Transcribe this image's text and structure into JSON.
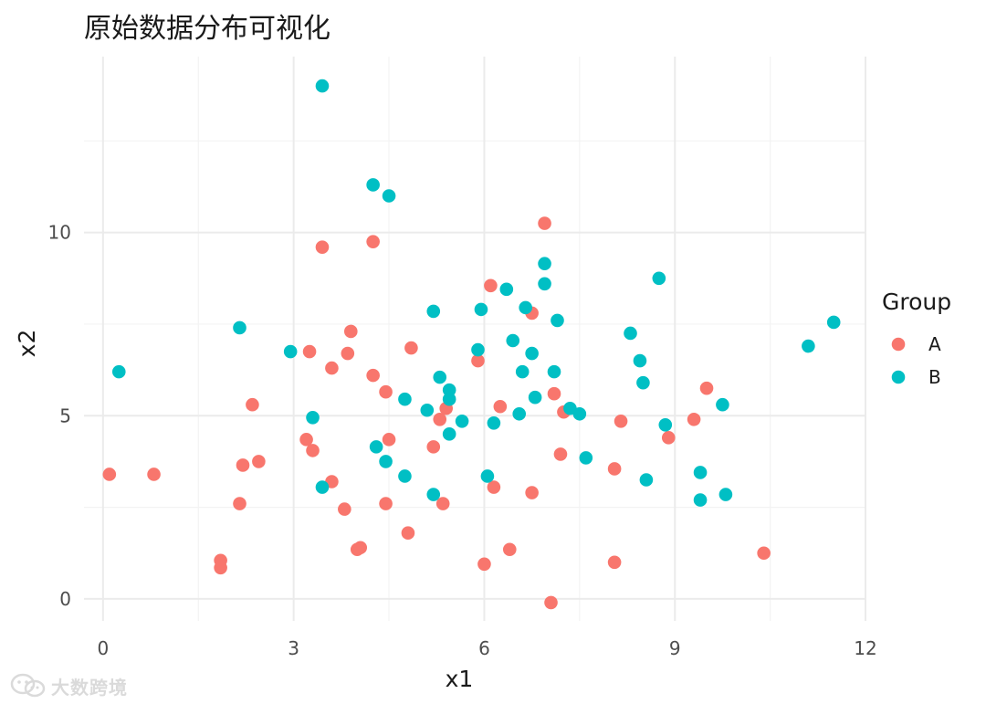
{
  "chart_data": {
    "type": "scatter",
    "title": "原始数据分布可视化",
    "xlabel": "x1",
    "ylabel": "x2",
    "xlim": [
      -0.3,
      12
    ],
    "ylim": [
      -0.6,
      14.8
    ],
    "xticks": [
      0,
      3,
      6,
      9,
      12
    ],
    "yticks": [
      0,
      5,
      10
    ],
    "grid": true,
    "legend": {
      "title": "Group",
      "position": "right"
    },
    "series": [
      {
        "name": "A",
        "color": "#F8766D",
        "points": [
          [
            0.1,
            3.4
          ],
          [
            0.8,
            3.4
          ],
          [
            1.85,
            1.05
          ],
          [
            1.85,
            0.85
          ],
          [
            2.15,
            2.6
          ],
          [
            2.2,
            3.65
          ],
          [
            2.35,
            5.3
          ],
          [
            2.45,
            3.75
          ],
          [
            3.2,
            4.35
          ],
          [
            3.3,
            4.05
          ],
          [
            3.25,
            6.75
          ],
          [
            3.45,
            9.6
          ],
          [
            3.6,
            6.3
          ],
          [
            3.6,
            3.2
          ],
          [
            3.8,
            2.45
          ],
          [
            3.85,
            6.7
          ],
          [
            3.9,
            7.3
          ],
          [
            4.0,
            1.35
          ],
          [
            4.05,
            1.4
          ],
          [
            4.25,
            9.75
          ],
          [
            4.25,
            6.1
          ],
          [
            4.45,
            5.65
          ],
          [
            4.5,
            4.35
          ],
          [
            4.45,
            2.6
          ],
          [
            4.8,
            1.8
          ],
          [
            4.85,
            6.85
          ],
          [
            5.2,
            4.15
          ],
          [
            5.3,
            4.9
          ],
          [
            5.4,
            5.2
          ],
          [
            5.35,
            2.6
          ],
          [
            5.9,
            6.5
          ],
          [
            6.0,
            0.95
          ],
          [
            6.1,
            8.55
          ],
          [
            6.15,
            3.05
          ],
          [
            6.25,
            5.25
          ],
          [
            6.4,
            1.35
          ],
          [
            6.75,
            7.8
          ],
          [
            6.75,
            2.9
          ],
          [
            6.95,
            10.25
          ],
          [
            7.1,
            5.6
          ],
          [
            7.2,
            3.95
          ],
          [
            7.25,
            5.1
          ],
          [
            7.05,
            -0.1
          ],
          [
            8.05,
            1.0
          ],
          [
            8.05,
            3.55
          ],
          [
            8.15,
            4.85
          ],
          [
            8.9,
            4.4
          ],
          [
            9.3,
            4.9
          ],
          [
            9.5,
            5.75
          ],
          [
            10.4,
            1.25
          ]
        ]
      },
      {
        "name": "B",
        "color": "#00BFC4",
        "points": [
          [
            0.25,
            6.2
          ],
          [
            2.15,
            7.4
          ],
          [
            2.95,
            6.75
          ],
          [
            3.3,
            4.95
          ],
          [
            3.45,
            3.05
          ],
          [
            3.45,
            14.0
          ],
          [
            4.25,
            11.3
          ],
          [
            4.3,
            4.15
          ],
          [
            4.45,
            3.75
          ],
          [
            4.5,
            11.0
          ],
          [
            4.75,
            3.35
          ],
          [
            4.75,
            5.45
          ],
          [
            5.1,
            5.15
          ],
          [
            5.2,
            7.85
          ],
          [
            5.2,
            2.85
          ],
          [
            5.3,
            6.05
          ],
          [
            5.45,
            4.5
          ],
          [
            5.45,
            5.7
          ],
          [
            5.45,
            5.45
          ],
          [
            5.65,
            4.85
          ],
          [
            5.9,
            6.8
          ],
          [
            5.95,
            7.9
          ],
          [
            6.05,
            3.35
          ],
          [
            6.15,
            4.8
          ],
          [
            6.35,
            8.45
          ],
          [
            6.45,
            7.05
          ],
          [
            6.55,
            5.05
          ],
          [
            6.6,
            6.2
          ],
          [
            6.65,
            7.95
          ],
          [
            6.75,
            6.7
          ],
          [
            6.8,
            5.5
          ],
          [
            6.95,
            9.15
          ],
          [
            6.95,
            8.6
          ],
          [
            7.1,
            6.2
          ],
          [
            7.15,
            7.6
          ],
          [
            7.35,
            5.2
          ],
          [
            7.5,
            5.05
          ],
          [
            7.6,
            3.85
          ],
          [
            8.3,
            7.25
          ],
          [
            8.45,
            6.5
          ],
          [
            8.5,
            5.9
          ],
          [
            8.55,
            3.25
          ],
          [
            8.75,
            8.75
          ],
          [
            8.85,
            4.75
          ],
          [
            9.4,
            3.45
          ],
          [
            9.4,
            2.7
          ],
          [
            9.75,
            5.3
          ],
          [
            9.8,
            2.85
          ],
          [
            11.1,
            6.9
          ],
          [
            11.5,
            7.55
          ]
        ]
      }
    ]
  },
  "watermark": {
    "text": "大数跨境",
    "icon": "wechat-icon"
  }
}
